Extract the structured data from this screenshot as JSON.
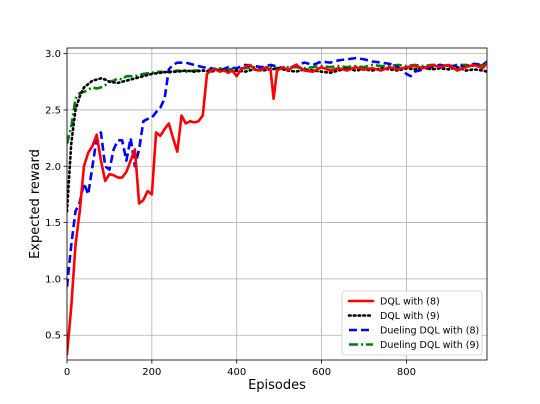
{
  "chart_data": {
    "type": "line",
    "title": "",
    "xlabel": "Episodes",
    "ylabel": "Expected reward",
    "xlim": [
      0,
      990
    ],
    "ylim": [
      0.28,
      3.05
    ],
    "x_ticks": [
      0,
      200,
      400,
      600,
      800
    ],
    "x_tick_labels": [
      "0",
      "200",
      "400",
      "600",
      "800"
    ],
    "y_ticks": [
      0.5,
      1.0,
      1.5,
      2.0,
      2.5,
      3.0
    ],
    "y_tick_labels": [
      "0.5",
      "1.0",
      "1.5",
      "2.0",
      "2.5",
      "3.0"
    ],
    "grid": true,
    "legend_position": "lower-right",
    "series": [
      {
        "name": "DQL with (8)",
        "color": "#ff0000",
        "style": "solid",
        "points": [
          [
            0,
            0.33
          ],
          [
            10,
            0.75
          ],
          [
            20,
            1.3
          ],
          [
            30,
            1.6
          ],
          [
            40,
            2.0
          ],
          [
            50,
            2.12
          ],
          [
            60,
            2.18
          ],
          [
            70,
            2.28
          ],
          [
            80,
            2.05
          ],
          [
            90,
            1.87
          ],
          [
            100,
            1.93
          ],
          [
            110,
            1.92
          ],
          [
            120,
            1.9
          ],
          [
            130,
            1.9
          ],
          [
            140,
            1.95
          ],
          [
            150,
            2.05
          ],
          [
            160,
            2.15
          ],
          [
            170,
            1.67
          ],
          [
            180,
            1.7
          ],
          [
            190,
            1.78
          ],
          [
            200,
            1.75
          ],
          [
            210,
            2.3
          ],
          [
            220,
            2.27
          ],
          [
            230,
            2.33
          ],
          [
            240,
            2.38
          ],
          [
            250,
            2.25
          ],
          [
            260,
            2.13
          ],
          [
            270,
            2.45
          ],
          [
            280,
            2.38
          ],
          [
            290,
            2.4
          ],
          [
            300,
            2.39
          ],
          [
            310,
            2.4
          ],
          [
            320,
            2.45
          ],
          [
            330,
            2.82
          ],
          [
            340,
            2.85
          ],
          [
            350,
            2.86
          ],
          [
            360,
            2.84
          ],
          [
            370,
            2.85
          ],
          [
            380,
            2.83
          ],
          [
            390,
            2.85
          ],
          [
            400,
            2.8
          ],
          [
            410,
            2.86
          ],
          [
            420,
            2.88
          ],
          [
            430,
            2.9
          ],
          [
            440,
            2.87
          ],
          [
            450,
            2.85
          ],
          [
            460,
            2.86
          ],
          [
            470,
            2.88
          ],
          [
            480,
            2.85
          ],
          [
            487,
            2.6
          ],
          [
            495,
            2.85
          ],
          [
            510,
            2.88
          ],
          [
            520,
            2.85
          ],
          [
            540,
            2.9
          ],
          [
            560,
            2.85
          ],
          [
            580,
            2.84
          ],
          [
            600,
            2.88
          ],
          [
            620,
            2.85
          ],
          [
            640,
            2.87
          ],
          [
            660,
            2.85
          ],
          [
            680,
            2.88
          ],
          [
            700,
            2.86
          ],
          [
            720,
            2.87
          ],
          [
            740,
            2.85
          ],
          [
            760,
            2.88
          ],
          [
            780,
            2.86
          ],
          [
            800,
            2.88
          ],
          [
            820,
            2.89
          ],
          [
            840,
            2.87
          ],
          [
            860,
            2.9
          ],
          [
            880,
            2.88
          ],
          [
            900,
            2.9
          ],
          [
            920,
            2.85
          ],
          [
            940,
            2.88
          ],
          [
            960,
            2.9
          ],
          [
            980,
            2.87
          ],
          [
            990,
            2.92
          ]
        ]
      },
      {
        "name": "DQL with (9)",
        "color": "#000000",
        "style": "dotted",
        "points": [
          [
            0,
            1.6
          ],
          [
            10,
            2.2
          ],
          [
            20,
            2.5
          ],
          [
            30,
            2.62
          ],
          [
            40,
            2.7
          ],
          [
            50,
            2.73
          ],
          [
            60,
            2.76
          ],
          [
            70,
            2.77
          ],
          [
            80,
            2.78
          ],
          [
            90,
            2.77
          ],
          [
            100,
            2.75
          ],
          [
            120,
            2.74
          ],
          [
            140,
            2.76
          ],
          [
            160,
            2.78
          ],
          [
            180,
            2.8
          ],
          [
            200,
            2.82
          ],
          [
            220,
            2.83
          ],
          [
            240,
            2.84
          ],
          [
            260,
            2.84
          ],
          [
            280,
            2.85
          ],
          [
            300,
            2.84
          ],
          [
            320,
            2.85
          ],
          [
            340,
            2.84
          ],
          [
            360,
            2.86
          ],
          [
            380,
            2.84
          ],
          [
            400,
            2.85
          ],
          [
            420,
            2.84
          ],
          [
            440,
            2.86
          ],
          [
            460,
            2.85
          ],
          [
            480,
            2.86
          ],
          [
            500,
            2.87
          ],
          [
            520,
            2.85
          ],
          [
            540,
            2.84
          ],
          [
            560,
            2.86
          ],
          [
            580,
            2.85
          ],
          [
            600,
            2.84
          ],
          [
            620,
            2.83
          ],
          [
            640,
            2.85
          ],
          [
            660,
            2.87
          ],
          [
            680,
            2.85
          ],
          [
            700,
            2.86
          ],
          [
            720,
            2.85
          ],
          [
            740,
            2.87
          ],
          [
            760,
            2.86
          ],
          [
            780,
            2.85
          ],
          [
            800,
            2.87
          ],
          [
            820,
            2.86
          ],
          [
            840,
            2.88
          ],
          [
            860,
            2.86
          ],
          [
            880,
            2.87
          ],
          [
            900,
            2.86
          ],
          [
            920,
            2.88
          ],
          [
            940,
            2.85
          ],
          [
            960,
            2.86
          ],
          [
            980,
            2.85
          ],
          [
            990,
            2.84
          ]
        ]
      },
      {
        "name": "Dueling DQL with (8)",
        "color": "#0000ff",
        "style": "dashed",
        "points": [
          [
            0,
            0.93
          ],
          [
            10,
            1.3
          ],
          [
            20,
            1.6
          ],
          [
            30,
            1.68
          ],
          [
            40,
            1.85
          ],
          [
            50,
            1.75
          ],
          [
            60,
            2.0
          ],
          [
            70,
            2.25
          ],
          [
            80,
            2.3
          ],
          [
            90,
            2.0
          ],
          [
            100,
            1.97
          ],
          [
            110,
            2.15
          ],
          [
            120,
            2.23
          ],
          [
            130,
            2.23
          ],
          [
            140,
            2.05
          ],
          [
            150,
            2.25
          ],
          [
            160,
            2.0
          ],
          [
            170,
            2.15
          ],
          [
            180,
            2.4
          ],
          [
            190,
            2.42
          ],
          [
            200,
            2.43
          ],
          [
            210,
            2.48
          ],
          [
            220,
            2.52
          ],
          [
            230,
            2.6
          ],
          [
            240,
            2.86
          ],
          [
            250,
            2.9
          ],
          [
            260,
            2.92
          ],
          [
            280,
            2.92
          ],
          [
            300,
            2.9
          ],
          [
            320,
            2.88
          ],
          [
            340,
            2.87
          ],
          [
            360,
            2.85
          ],
          [
            380,
            2.88
          ],
          [
            400,
            2.87
          ],
          [
            420,
            2.9
          ],
          [
            440,
            2.89
          ],
          [
            460,
            2.88
          ],
          [
            480,
            2.9
          ],
          [
            500,
            2.88
          ],
          [
            520,
            2.86
          ],
          [
            540,
            2.9
          ],
          [
            560,
            2.92
          ],
          [
            580,
            2.9
          ],
          [
            600,
            2.93
          ],
          [
            620,
            2.92
          ],
          [
            640,
            2.94
          ],
          [
            660,
            2.95
          ],
          [
            680,
            2.96
          ],
          [
            700,
            2.95
          ],
          [
            720,
            2.93
          ],
          [
            740,
            2.92
          ],
          [
            760,
            2.91
          ],
          [
            780,
            2.88
          ],
          [
            790,
            2.85
          ],
          [
            800,
            2.82
          ],
          [
            810,
            2.8
          ],
          [
            820,
            2.84
          ],
          [
            840,
            2.86
          ],
          [
            860,
            2.88
          ],
          [
            880,
            2.9
          ],
          [
            900,
            2.88
          ],
          [
            920,
            2.9
          ],
          [
            940,
            2.88
          ],
          [
            960,
            2.91
          ],
          [
            980,
            2.9
          ],
          [
            990,
            2.93
          ]
        ]
      },
      {
        "name": "Dueling DQL with (9)",
        "color": "#008000",
        "style": "dashdot",
        "points": [
          [
            0,
            2.2
          ],
          [
            10,
            2.35
          ],
          [
            20,
            2.6
          ],
          [
            30,
            2.65
          ],
          [
            40,
            2.66
          ],
          [
            50,
            2.68
          ],
          [
            60,
            2.7
          ],
          [
            70,
            2.69
          ],
          [
            80,
            2.7
          ],
          [
            90,
            2.72
          ],
          [
            100,
            2.75
          ],
          [
            110,
            2.76
          ],
          [
            120,
            2.78
          ],
          [
            130,
            2.77
          ],
          [
            140,
            2.8
          ],
          [
            160,
            2.8
          ],
          [
            180,
            2.82
          ],
          [
            200,
            2.83
          ],
          [
            220,
            2.84
          ],
          [
            240,
            2.83
          ],
          [
            260,
            2.85
          ],
          [
            280,
            2.84
          ],
          [
            300,
            2.85
          ],
          [
            320,
            2.85
          ],
          [
            340,
            2.86
          ],
          [
            360,
            2.87
          ],
          [
            380,
            2.86
          ],
          [
            400,
            2.87
          ],
          [
            420,
            2.87
          ],
          [
            440,
            2.88
          ],
          [
            460,
            2.87
          ],
          [
            480,
            2.88
          ],
          [
            500,
            2.87
          ],
          [
            520,
            2.88
          ],
          [
            540,
            2.88
          ],
          [
            560,
            2.87
          ],
          [
            580,
            2.88
          ],
          [
            600,
            2.89
          ],
          [
            620,
            2.88
          ],
          [
            640,
            2.89
          ],
          [
            660,
            2.88
          ],
          [
            680,
            2.89
          ],
          [
            700,
            2.88
          ],
          [
            720,
            2.9
          ],
          [
            740,
            2.89
          ],
          [
            760,
            2.89
          ],
          [
            780,
            2.9
          ],
          [
            800,
            2.89
          ],
          [
            820,
            2.9
          ],
          [
            840,
            2.89
          ],
          [
            860,
            2.9
          ],
          [
            880,
            2.9
          ],
          [
            900,
            2.89
          ],
          [
            920,
            2.9
          ],
          [
            940,
            2.9
          ],
          [
            960,
            2.89
          ],
          [
            980,
            2.9
          ],
          [
            990,
            2.9
          ]
        ]
      }
    ]
  }
}
